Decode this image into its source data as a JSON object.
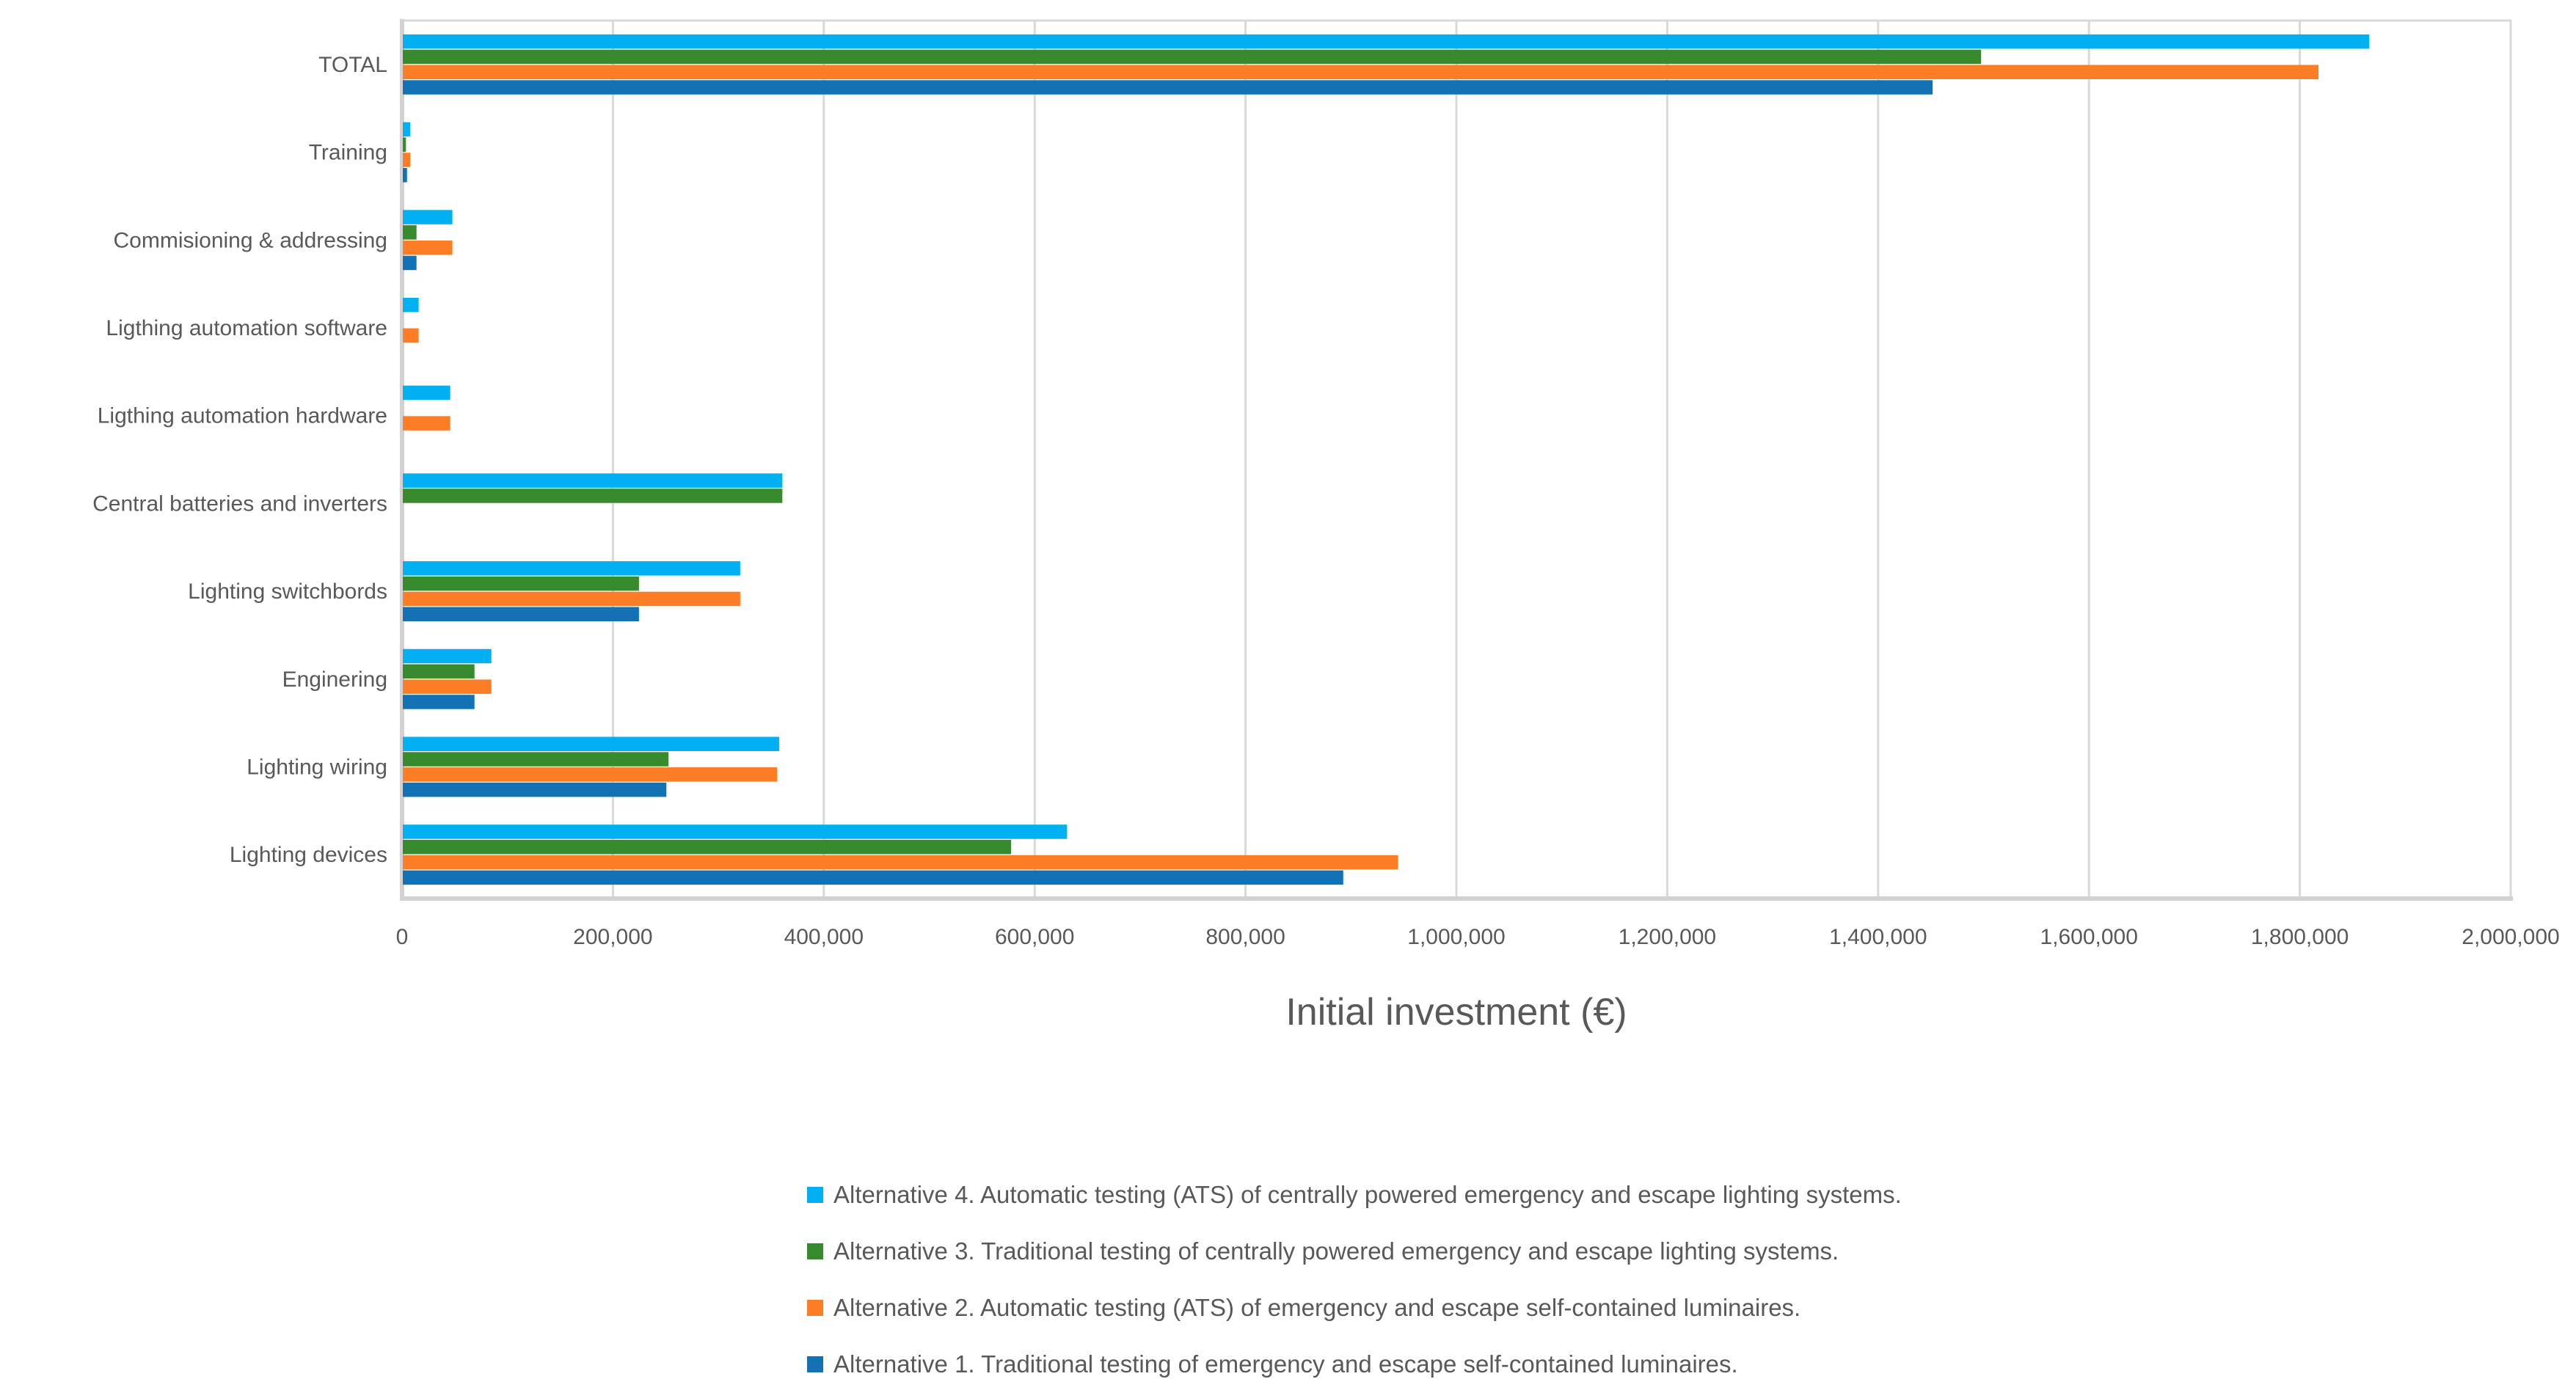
{
  "page": {
    "background": "#FFFFFF"
  },
  "chart_data": {
    "type": "bar",
    "orientation": "horizontal",
    "title": "",
    "xlabel": "Initial investment (€)",
    "ylabel": "",
    "xlim": [
      0,
      2000000
    ],
    "grid": true,
    "legend_position": "bottom-left",
    "xtick_values": [
      0,
      200000,
      400000,
      600000,
      800000,
      1000000,
      1200000,
      1400000,
      1600000,
      1800000,
      2000000
    ],
    "xtick_labels": [
      "0",
      "200,000",
      "400,000",
      "600,000",
      "800,000",
      "1,000,000",
      "1,200,000",
      "1,400,000",
      "1,600,000",
      "1,800,000",
      "2,000,000"
    ],
    "categories": [
      "TOTAL",
      "Training",
      "Commisioning & addressing",
      "Ligthing automation software",
      "Ligthing automation hardware",
      "Central batteries and inverters",
      "Lighting switchbords",
      "Enginering",
      "Lighting wiring",
      "Lighting devices"
    ],
    "series": [
      {
        "name": "Alternative 4. Automatic testing (ATS) of centrally powered emergency and escape lighting systems.",
        "color": "#00B0F0",
        "values": [
          1865000,
          7000,
          47000,
          15000,
          45000,
          360000,
          320000,
          84000,
          357000,
          630000
        ]
      },
      {
        "name": "Alternative 3. Traditional testing of centrally powered emergency and escape lighting systems.",
        "color": "#378B2C",
        "values": [
          1497000,
          3000,
          13000,
          0,
          0,
          360000,
          224000,
          68000,
          252000,
          577000
        ]
      },
      {
        "name": "Alternative 2. Automatic testing (ATS) of emergency and escape self-contained luminaires.",
        "color": "#FC7D26",
        "values": [
          1817000,
          7000,
          47000,
          15000,
          45000,
          0,
          320000,
          84000,
          355000,
          944000
        ]
      },
      {
        "name": "Alternative 1. Traditional testing of emergency and escape self-contained luminaires.",
        "color": "#1272B4",
        "values": [
          1451000,
          4000,
          13000,
          0,
          0,
          0,
          224000,
          68000,
          250000,
          892000
        ]
      }
    ],
    "style": {
      "grid_color": "#D9D9D9",
      "axis_line_color": "#D2D2D2",
      "text_color": "#595959"
    }
  }
}
